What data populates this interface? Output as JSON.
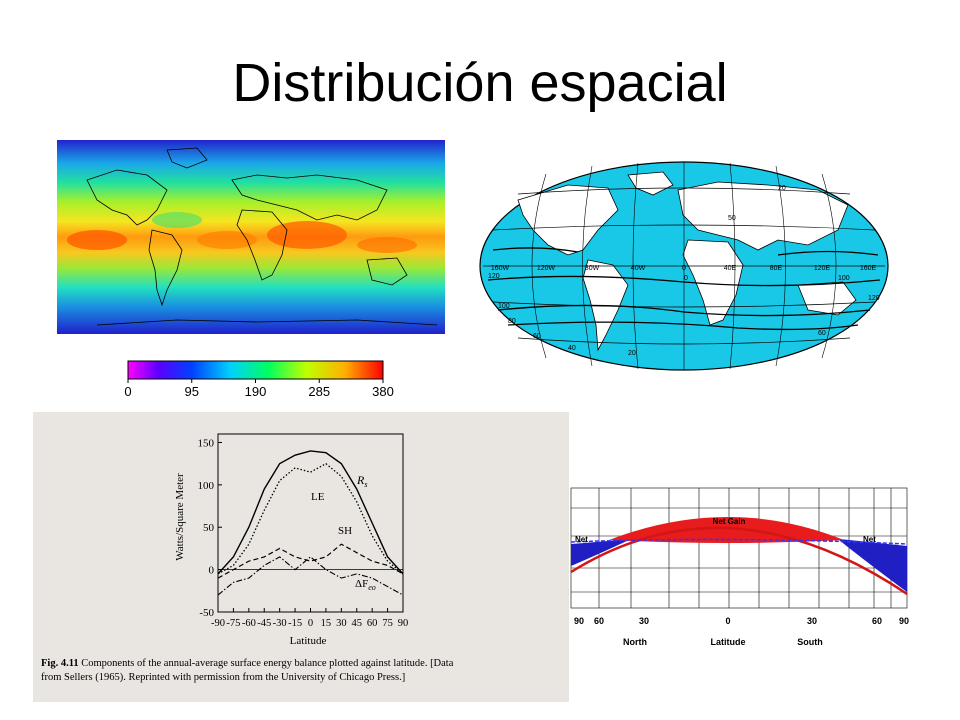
{
  "slide": {
    "title": "Distribución espacial"
  },
  "heatmap": {
    "colorbar_ticks": [
      "0",
      "95",
      "190",
      "285",
      "380"
    ],
    "colors": {
      "cold": "#1b1bd6",
      "warm": "#ff5a00",
      "mid": "#19e0d0"
    }
  },
  "robinson_map": {
    "ocean_color": "#19c8e6",
    "labels": [
      "160W",
      "120W",
      "80W",
      "40W",
      "0",
      "40E",
      "80E",
      "120E",
      "160E"
    ],
    "contour_values": [
      "120",
      "100",
      "80",
      "60",
      "40",
      "20",
      "0",
      "50",
      "20",
      "100",
      "120",
      "60"
    ]
  },
  "sellers_figure": {
    "chart_data": {
      "type": "line",
      "title": "",
      "xlabel": "Latitude",
      "ylabel": "Watts/Square Meter",
      "x": [
        -90,
        -75,
        -60,
        -45,
        -30,
        -15,
        0,
        15,
        30,
        45,
        60,
        75,
        90
      ],
      "xtick_labels": [
        "-90",
        "-75",
        "-60",
        "-45",
        "-30",
        "-15",
        "0",
        "15",
        "30",
        "45",
        "60",
        "75",
        "90"
      ],
      "yticks": [
        -50,
        0,
        50,
        100,
        150
      ],
      "ytick_labels": [
        "-50",
        "0",
        "50",
        "100",
        "150"
      ],
      "ylim": [
        -50,
        160
      ],
      "series": [
        {
          "name": "R_s",
          "values": [
            -5,
            15,
            50,
            95,
            125,
            135,
            140,
            138,
            125,
            95,
            55,
            15,
            -5
          ]
        },
        {
          "name": "LE",
          "values": [
            -5,
            5,
            30,
            70,
            105,
            120,
            115,
            125,
            110,
            80,
            40,
            10,
            -5
          ]
        },
        {
          "name": "SH",
          "values": [
            -10,
            0,
            10,
            15,
            25,
            15,
            10,
            15,
            30,
            20,
            10,
            5,
            -5
          ]
        },
        {
          "name": "ΔF_eo",
          "values": [
            -30,
            -15,
            -10,
            5,
            15,
            0,
            15,
            0,
            -10,
            -5,
            -10,
            -20,
            -30
          ]
        }
      ],
      "series_labels": {
        "rs": "R",
        "rs_sub": "s",
        "le": "LE",
        "sh": "SH",
        "df": "ΔF",
        "df_sub": "eo"
      }
    },
    "caption_bold": "Fig. 4.11",
    "caption_line1": " Components of the annual-average surface energy balance plotted against latitude. [Data",
    "caption_line2": "from Sellers (1965). Reprinted with permission from the University of Chicago Press.]"
  },
  "net_gain_chart": {
    "chart_data": {
      "type": "area",
      "labels": {
        "gain": "Net Gain",
        "loss_left": "Net",
        "loss_right": "Net"
      },
      "x_ticks": [
        "90",
        "60",
        "30",
        "0",
        "30",
        "60",
        "90"
      ],
      "x_labels": {
        "north": "North",
        "latitude": "Latitude",
        "south": "South"
      },
      "colors": {
        "gain": "#e81c1c",
        "loss": "#1f1fc4",
        "incoming": "#d41515"
      }
    }
  }
}
